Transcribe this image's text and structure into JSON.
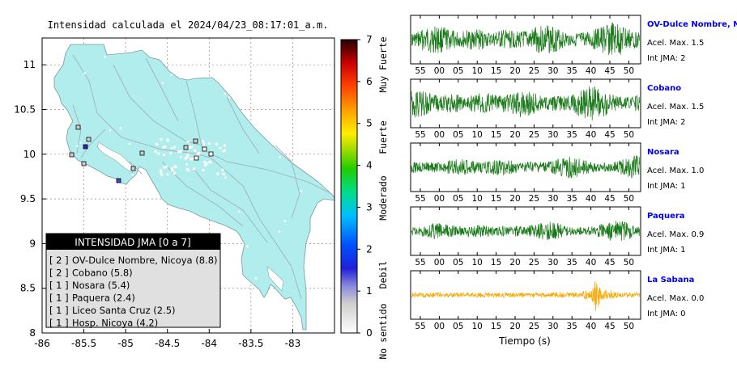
{
  "map": {
    "title": "Intensidad calculada el 2024/04/23_08:17:01_a.m.",
    "lon_range": [
      -86,
      -82.5
    ],
    "lat_range": [
      8,
      11.3
    ],
    "x_ticks": [
      "-86",
      "-85.5",
      "-85",
      "-84.5",
      "-84",
      "-83.5",
      "-83"
    ],
    "y_ticks": [
      "8",
      "8.5",
      "9",
      "9.5",
      "10",
      "10.5",
      "11"
    ],
    "land_color": "#b1eded",
    "legend_title": "INTENSIDAD JMA [0 a 7]",
    "legend_items": [
      {
        "level": "[ 2 ]",
        "label": "OV-Dulce Nombre, Nicoya (8.8)"
      },
      {
        "level": "[ 2 ]",
        "label": "Cobano (5.8)"
      },
      {
        "level": "[ 1 ]",
        "label": "Nosara (5.4)"
      },
      {
        "level": "[ 1 ]",
        "label": "Paquera (2.4)"
      },
      {
        "level": "[ 1 ]",
        "label": "Liceo Santa Cruz (2.5)"
      },
      {
        "level": "[ 1 ]",
        "label": "Hosp. Nicoya (4.2)"
      }
    ]
  },
  "colorbar": {
    "ticks": [
      "0",
      "1",
      "2",
      "3",
      "4",
      "5",
      "6",
      "7"
    ],
    "labels": [
      "No sentido",
      "Debil",
      "Moderado",
      "Fuerte",
      "Muy Fuerte"
    ]
  },
  "waveforms": {
    "x_tick_labels": [
      "55",
      "00",
      "05",
      "10",
      "15",
      "20",
      "25",
      "30",
      "35",
      "40",
      "45",
      "50"
    ],
    "xlabel": "Tiempo (s)",
    "trace_color_default": "#1a7a1a",
    "trace_color_last": "#f5a800",
    "name_color": "#0000ee"
  },
  "chart_data": {
    "type": "waveform",
    "stations": [
      {
        "name": "OV-Dulce Nombre, Nicoya",
        "acel_max": "Acel. Max. 1.5",
        "int_jma": "Int JMA: 2",
        "amplitude": 1.5,
        "intensity": 2
      },
      {
        "name": "Cobano",
        "acel_max": "Acel. Max. 1.5",
        "int_jma": "Int JMA: 2",
        "amplitude": 1.5,
        "intensity": 2
      },
      {
        "name": "Nosara",
        "acel_max": "Acel. Max. 1.0",
        "int_jma": "Int JMA: 1",
        "amplitude": 1.0,
        "intensity": 1
      },
      {
        "name": "Paquera",
        "acel_max": "Acel. Max. 0.9",
        "int_jma": "Int JMA: 1",
        "amplitude": 0.9,
        "intensity": 1
      },
      {
        "name": "La Sabana",
        "acel_max": "Acel. Max. 0.0",
        "int_jma": "Int JMA: 0",
        "amplitude": 0.0,
        "intensity": 0
      }
    ]
  }
}
